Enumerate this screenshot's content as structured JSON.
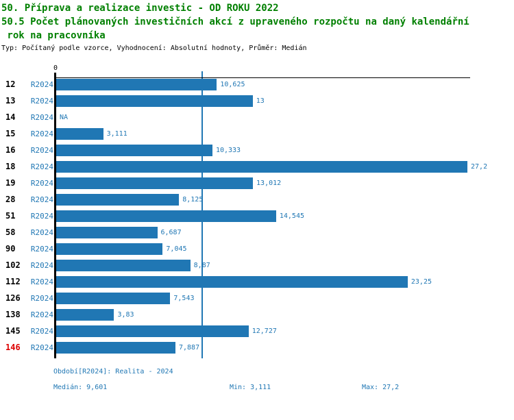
{
  "header": {
    "title_line1": "50. Příprava a realizace investic - OD ROKU 2022",
    "title_line2": "50.5 Počet plánovaných investičních akcí z upraveného rozpočtu na daný kalendářní",
    "title_line3": " rok na pracovníka",
    "meta_line": "Typ: Počítaný podle vzorce, Vyhodnocení: Absolutní hodnoty, Průměr: Medián"
  },
  "colors": {
    "title_green": "#008000",
    "bar_blue": "#2077b4",
    "text_blue": "#2077b4",
    "highlight_red": "#dd0000",
    "axis_black": "#000000"
  },
  "chart_data": {
    "type": "bar",
    "orientation": "horizontal",
    "title": "50.5 Počet plánovaných investičních akcí z upraveného rozpočtu na daný kalendářní rok na pracovníka",
    "xlabel": "",
    "ylabel": "",
    "axis_zero_label": "0",
    "xlim": [
      0,
      27.38
    ],
    "grid": false,
    "median_value": 9.601,
    "series_name": "R2024",
    "rows": [
      {
        "id": "12",
        "period": "R2024",
        "label": "10,625",
        "value": 10.625,
        "highlight": false
      },
      {
        "id": "13",
        "period": "R2024",
        "label": "13",
        "value": 13,
        "highlight": false
      },
      {
        "id": "14",
        "period": "R2024",
        "label": "NA",
        "value": null,
        "highlight": false
      },
      {
        "id": "15",
        "period": "R2024",
        "label": "3,111",
        "value": 3.111,
        "highlight": false
      },
      {
        "id": "16",
        "period": "R2024",
        "label": "10,333",
        "value": 10.333,
        "highlight": false
      },
      {
        "id": "18",
        "period": "R2024",
        "label": "27,2",
        "value": 27.2,
        "highlight": false
      },
      {
        "id": "19",
        "period": "R2024",
        "label": "13,012",
        "value": 13.012,
        "highlight": false
      },
      {
        "id": "28",
        "period": "R2024",
        "label": "8,125",
        "value": 8.125,
        "highlight": false
      },
      {
        "id": "51",
        "period": "R2024",
        "label": "14,545",
        "value": 14.545,
        "highlight": false
      },
      {
        "id": "58",
        "period": "R2024",
        "label": "6,687",
        "value": 6.687,
        "highlight": false
      },
      {
        "id": "90",
        "period": "R2024",
        "label": "7,045",
        "value": 7.045,
        "highlight": false
      },
      {
        "id": "102",
        "period": "R2024",
        "label": "8,87",
        "value": 8.87,
        "highlight": false
      },
      {
        "id": "112",
        "period": "R2024",
        "label": "23,25",
        "value": 23.25,
        "highlight": false
      },
      {
        "id": "126",
        "period": "R2024",
        "label": "7,543",
        "value": 7.543,
        "highlight": false
      },
      {
        "id": "138",
        "period": "R2024",
        "label": "3,83",
        "value": 3.83,
        "highlight": false
      },
      {
        "id": "145",
        "period": "R2024",
        "label": "12,727",
        "value": 12.727,
        "highlight": false
      },
      {
        "id": "146",
        "period": "R2024",
        "label": "7,887",
        "value": 7.887,
        "highlight": true
      }
    ]
  },
  "footer": {
    "period_line": "Období[R2024]: Realita - 2024",
    "median": "Medián: 9,601",
    "min": "Min: 3,111",
    "max": "Max: 27,2"
  }
}
